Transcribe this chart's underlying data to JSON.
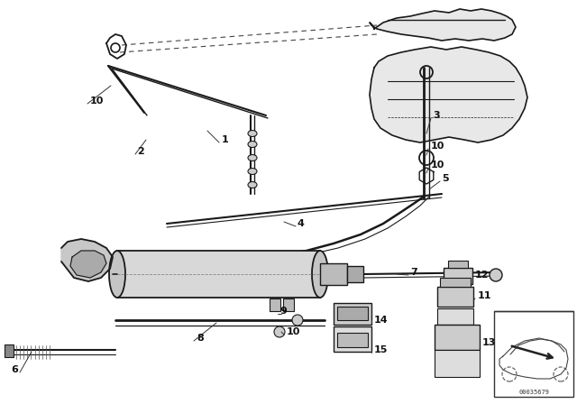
{
  "bg_color": "#ffffff",
  "line_color": "#1a1a1a",
  "part_number": "00035679",
  "figsize": [
    6.4,
    4.48
  ],
  "dpi": 100,
  "xlim": [
    0,
    640
  ],
  "ylim": [
    0,
    448
  ]
}
